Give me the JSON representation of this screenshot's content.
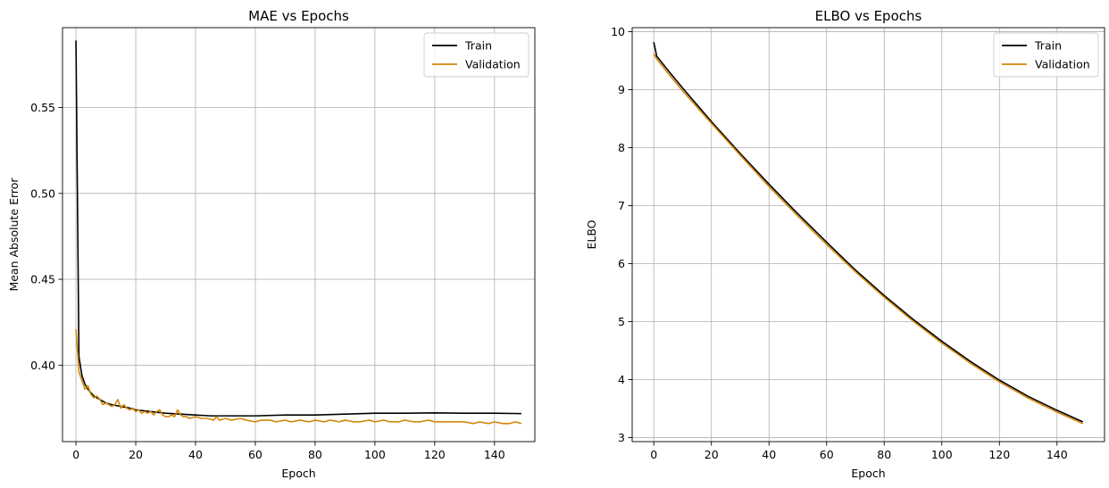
{
  "chart_data": [
    {
      "type": "line",
      "title": "MAE vs Epochs",
      "xlabel": "Epoch",
      "ylabel": "Mean Absolute Error",
      "xlim": [
        -4.5,
        153.5
      ],
      "ylim": [
        0.3555,
        0.5965
      ],
      "xticks": [
        0,
        20,
        40,
        60,
        80,
        100,
        120,
        140
      ],
      "yticks": [
        0.4,
        0.45,
        0.5,
        0.55
      ],
      "ytick_labels": [
        "0.40",
        "0.45",
        "0.50",
        "0.55"
      ],
      "grid": true,
      "legend_position": "upper right",
      "series": [
        {
          "name": "Train",
          "color": "#000000",
          "x": [
            0,
            1,
            2,
            3,
            4,
            5,
            6,
            7,
            8,
            10,
            12,
            15,
            18,
            20,
            25,
            30,
            35,
            40,
            45,
            50,
            60,
            70,
            80,
            90,
            100,
            110,
            120,
            130,
            140,
            149
          ],
          "y": [
            0.589,
            0.405,
            0.394,
            0.389,
            0.386,
            0.384,
            0.382,
            0.381,
            0.38,
            0.378,
            0.377,
            0.376,
            0.375,
            0.374,
            0.373,
            0.372,
            0.3715,
            0.371,
            0.3705,
            0.3705,
            0.3705,
            0.371,
            0.371,
            0.3715,
            0.372,
            0.372,
            0.3722,
            0.372,
            0.372,
            0.3718
          ]
        },
        {
          "name": "Validation",
          "color": "#d4870a",
          "x": [
            0,
            1,
            2,
            3,
            4,
            5,
            6,
            7,
            8,
            9,
            10,
            11,
            12,
            13,
            14,
            15,
            16,
            17,
            18,
            19,
            20,
            21,
            22,
            23,
            24,
            25,
            26,
            27,
            28,
            29,
            30,
            31,
            32,
            33,
            34,
            35,
            36,
            37,
            38,
            40,
            42,
            44,
            46,
            47,
            48,
            50,
            52,
            55,
            57,
            60,
            62,
            65,
            67,
            70,
            72,
            75,
            78,
            80,
            83,
            85,
            88,
            90,
            93,
            95,
            98,
            100,
            103,
            105,
            108,
            110,
            113,
            115,
            118,
            120,
            123,
            125,
            128,
            130,
            133,
            135,
            138,
            140,
            143,
            145,
            147,
            149
          ],
          "y": [
            0.421,
            0.396,
            0.391,
            0.386,
            0.388,
            0.383,
            0.381,
            0.382,
            0.38,
            0.377,
            0.378,
            0.377,
            0.376,
            0.377,
            0.38,
            0.375,
            0.377,
            0.375,
            0.374,
            0.375,
            0.373,
            0.374,
            0.372,
            0.373,
            0.372,
            0.373,
            0.371,
            0.373,
            0.374,
            0.371,
            0.37,
            0.37,
            0.371,
            0.37,
            0.374,
            0.371,
            0.37,
            0.37,
            0.369,
            0.37,
            0.369,
            0.369,
            0.368,
            0.37,
            0.368,
            0.369,
            0.368,
            0.369,
            0.368,
            0.367,
            0.368,
            0.368,
            0.367,
            0.368,
            0.367,
            0.368,
            0.367,
            0.368,
            0.367,
            0.368,
            0.367,
            0.368,
            0.367,
            0.367,
            0.368,
            0.367,
            0.368,
            0.367,
            0.367,
            0.368,
            0.367,
            0.367,
            0.368,
            0.367,
            0.367,
            0.367,
            0.367,
            0.367,
            0.366,
            0.367,
            0.366,
            0.367,
            0.366,
            0.366,
            0.367,
            0.366
          ]
        }
      ]
    },
    {
      "type": "line",
      "title": "ELBO vs Epochs",
      "xlabel": "Epoch",
      "ylabel": "ELBO",
      "xlim": [
        -7.5,
        156.5
      ],
      "ylim": [
        2.93,
        10.07
      ],
      "xticks": [
        0,
        20,
        40,
        60,
        80,
        100,
        120,
        140
      ],
      "yticks": [
        3,
        4,
        5,
        6,
        7,
        8,
        9,
        10
      ],
      "ytick_labels": [
        "3",
        "4",
        "5",
        "6",
        "7",
        "8",
        "9",
        "10"
      ],
      "grid": true,
      "legend_position": "upper right",
      "series": [
        {
          "name": "Train",
          "color": "#000000",
          "x": [
            0,
            1,
            5,
            10,
            20,
            30,
            40,
            50,
            60,
            70,
            80,
            90,
            100,
            110,
            120,
            130,
            140,
            149
          ],
          "y": [
            9.82,
            9.58,
            9.33,
            9.03,
            8.45,
            7.9,
            7.37,
            6.86,
            6.37,
            5.89,
            5.45,
            5.04,
            4.66,
            4.31,
            3.99,
            3.71,
            3.47,
            3.27
          ]
        },
        {
          "name": "Validation",
          "color": "#d4870a",
          "x": [
            0,
            1,
            5,
            10,
            20,
            30,
            40,
            50,
            60,
            70,
            80,
            90,
            100,
            110,
            120,
            130,
            140,
            149
          ],
          "y": [
            9.62,
            9.53,
            9.28,
            8.98,
            8.42,
            7.87,
            7.33,
            6.82,
            6.33,
            5.86,
            5.42,
            5.01,
            4.63,
            4.28,
            3.96,
            3.68,
            3.44,
            3.24
          ]
        }
      ]
    }
  ]
}
